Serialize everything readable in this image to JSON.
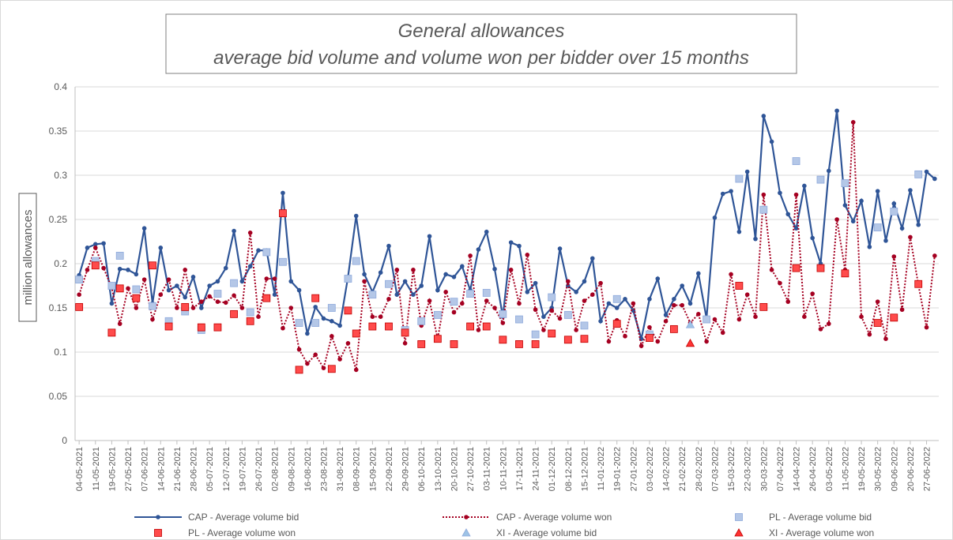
{
  "chart_data": {
    "type": "line",
    "title": "General allowances",
    "subtitle": "average bid volume and volume won per bidder over 15 months",
    "y_label": "million allowances",
    "categories": [
      "04-05-2021",
      null,
      "11-05-2021",
      null,
      "19-05-2021",
      null,
      "27-05-2021",
      null,
      "07-06-2021",
      null,
      "14-06-2021",
      null,
      "21-06-2021",
      null,
      "28-06-2021",
      null,
      "05-07-2021",
      null,
      "12-07-2021",
      null,
      "19-07-2021",
      null,
      "26-07-2021",
      null,
      "02-08-2021",
      null,
      "09-08-2021",
      null,
      "16-08-2021",
      null,
      "23-08-2021",
      null,
      "31-08-2021",
      null,
      "08-09-2021",
      null,
      "15-09-2021",
      null,
      "22-09-2021",
      null,
      "29-09-2021",
      null,
      "06-10-2021",
      null,
      "13-10-2021",
      null,
      "20-10-2021",
      null,
      "27-10-2021",
      null,
      "03-11-2021",
      null,
      "10-11-2021",
      null,
      "17-11-2021",
      null,
      "24-11-2021",
      null,
      "01-12-2021",
      null,
      "08-12-2021",
      null,
      "15-12-2021",
      null,
      "11-01-2022",
      null,
      "19-01-2022",
      null,
      "27-01-2022",
      null,
      "03-02-2022",
      null,
      "14-02-2022",
      null,
      "21-02-2022",
      null,
      "28-02-2022",
      null,
      "07-03-2022",
      null,
      "15-03-2022",
      null,
      "22-03-2022",
      null,
      "30-03-2022",
      null,
      "07-04-2022",
      null,
      "14-04-2022",
      null,
      "26-04-2022",
      null,
      "03-05-2022",
      null,
      "11-05-2022",
      null,
      "19-05-2022",
      null,
      "30-05-2022",
      null,
      "09-06-2022",
      null,
      "20-06-2022",
      null,
      "27-06-2022",
      null
    ],
    "series": [
      {
        "name": "CAP - Average volume bid",
        "color": "#2f5597",
        "line": "solid",
        "marker": "circle",
        "values": [
          0.187,
          0.218,
          0.222,
          0.223,
          0.155,
          0.194,
          0.193,
          0.188,
          0.24,
          0.155,
          0.218,
          0.17,
          0.175,
          0.162,
          0.185,
          0.15,
          0.175,
          0.18,
          0.195,
          0.237,
          0.18,
          0.197,
          0.215,
          0.215,
          0.165,
          0.28,
          0.18,
          0.17,
          0.121,
          0.151,
          0.138,
          0.135,
          0.13,
          0.185,
          0.254,
          0.188,
          0.168,
          0.19,
          0.22,
          0.165,
          0.18,
          0.165,
          0.175,
          0.231,
          0.17,
          0.188,
          0.185,
          0.197,
          0.17,
          0.216,
          0.236,
          0.194,
          0.14,
          0.224,
          0.22,
          0.168,
          0.178,
          0.14,
          0.15,
          0.217,
          0.175,
          0.168,
          0.18,
          0.206,
          0.135,
          0.155,
          0.15,
          0.16,
          0.147,
          0.115,
          0.16,
          0.183,
          0.142,
          0.16,
          0.175,
          0.155,
          0.189,
          0.138,
          0.252,
          0.279,
          0.282,
          0.236,
          0.304,
          0.228,
          0.367,
          0.338,
          0.28,
          0.256,
          0.24,
          0.288,
          0.229,
          0.2,
          0.305,
          0.373,
          0.266,
          0.248,
          0.271,
          0.219,
          0.282,
          0.226,
          0.268,
          0.24,
          0.283,
          0.244,
          0.304,
          0.296
        ]
      },
      {
        "name": "CAP - Average volume won",
        "color": "#a50021",
        "line": "dotted",
        "marker": "circle",
        "values": [
          0.165,
          0.193,
          0.218,
          0.195,
          0.173,
          0.132,
          0.172,
          0.15,
          0.182,
          0.137,
          0.165,
          0.182,
          0.15,
          0.193,
          0.15,
          0.157,
          0.163,
          0.157,
          0.156,
          0.164,
          0.15,
          0.235,
          0.14,
          0.183,
          0.183,
          0.127,
          0.15,
          0.103,
          0.087,
          0.097,
          0.082,
          0.118,
          0.092,
          0.11,
          0.08,
          0.18,
          0.14,
          0.14,
          0.16,
          0.193,
          0.11,
          0.193,
          0.13,
          0.158,
          0.115,
          0.168,
          0.145,
          0.155,
          0.209,
          0.125,
          0.158,
          0.15,
          0.133,
          0.193,
          0.155,
          0.21,
          0.148,
          0.125,
          0.147,
          0.138,
          0.18,
          0.125,
          0.158,
          0.165,
          0.178,
          0.112,
          0.136,
          0.118,
          0.155,
          0.107,
          0.128,
          0.112,
          0.135,
          0.153,
          0.153,
          0.133,
          0.143,
          0.112,
          0.137,
          0.122,
          0.188,
          0.137,
          0.165,
          0.14,
          0.278,
          0.193,
          0.178,
          0.157,
          0.278,
          0.14,
          0.166,
          0.126,
          0.132,
          0.25,
          0.193,
          0.36,
          0.14,
          0.12,
          0.157,
          0.115,
          0.208,
          0.148,
          0.23,
          0.176,
          0.128,
          0.209
        ]
      },
      {
        "name": "PL - Average volume bid",
        "color": "#b4c7e7",
        "line": "none",
        "marker": "square",
        "values": [
          0.182,
          null,
          0.203,
          null,
          0.175,
          0.209,
          null,
          0.171,
          null,
          0.152,
          null,
          0.135,
          null,
          0.146,
          null,
          0.125,
          null,
          0.166,
          null,
          0.178,
          null,
          0.145,
          null,
          0.213,
          null,
          0.202,
          null,
          0.133,
          null,
          0.133,
          null,
          0.15,
          null,
          0.183,
          0.203,
          null,
          0.165,
          null,
          0.177,
          null,
          0.125,
          null,
          0.135,
          null,
          0.142,
          null,
          0.157,
          null,
          0.166,
          null,
          0.167,
          null,
          0.143,
          null,
          0.137,
          null,
          0.12,
          null,
          0.162,
          null,
          0.142,
          null,
          0.13,
          null,
          null,
          null,
          0.16,
          null,
          null,
          null,
          0.12,
          null,
          null,
          null,
          null,
          null,
          null,
          0.137,
          null,
          null,
          null,
          0.296,
          null,
          null,
          0.261,
          null,
          null,
          null,
          0.316,
          null,
          null,
          0.295,
          null,
          null,
          0.291,
          null,
          null,
          null,
          0.241,
          null,
          0.259,
          null,
          null,
          0.301,
          null,
          null
        ]
      },
      {
        "name": "PL - Average volume won",
        "color": "#ff4b4b",
        "line": "none",
        "marker": "square",
        "values": [
          0.151,
          null,
          0.198,
          null,
          0.122,
          0.172,
          null,
          0.161,
          null,
          0.198,
          null,
          0.129,
          null,
          0.151,
          null,
          0.128,
          null,
          0.128,
          null,
          0.143,
          null,
          0.135,
          null,
          0.161,
          null,
          0.257,
          null,
          0.08,
          null,
          0.161,
          null,
          0.081,
          null,
          0.147,
          0.121,
          null,
          0.129,
          null,
          0.129,
          null,
          0.122,
          null,
          0.109,
          null,
          0.115,
          null,
          0.109,
          null,
          0.129,
          null,
          0.129,
          null,
          0.114,
          null,
          0.109,
          null,
          0.109,
          null,
          0.121,
          null,
          0.114,
          null,
          0.115,
          null,
          null,
          null,
          0.132,
          null,
          null,
          null,
          0.116,
          null,
          null,
          0.126,
          null,
          null,
          null,
          null,
          null,
          null,
          null,
          0.175,
          null,
          null,
          0.151,
          null,
          null,
          null,
          0.195,
          null,
          null,
          0.195,
          null,
          null,
          0.189,
          null,
          null,
          null,
          0.133,
          null,
          0.139,
          null,
          null,
          0.177,
          null,
          null
        ]
      },
      {
        "name": "XI - Average volume bid",
        "color": "#9dc3e6",
        "line": "none",
        "marker": "triangle",
        "values": [
          null,
          null,
          null,
          null,
          null,
          null,
          null,
          null,
          null,
          null,
          null,
          null,
          null,
          null,
          null,
          null,
          null,
          null,
          null,
          null,
          null,
          null,
          null,
          null,
          null,
          null,
          null,
          null,
          null,
          null,
          null,
          null,
          null,
          null,
          null,
          null,
          null,
          null,
          null,
          null,
          null,
          null,
          null,
          null,
          null,
          null,
          null,
          null,
          null,
          null,
          null,
          null,
          null,
          null,
          null,
          null,
          null,
          null,
          null,
          null,
          null,
          null,
          null,
          null,
          null,
          null,
          null,
          null,
          null,
          null,
          null,
          null,
          null,
          null,
          null,
          0.131,
          null,
          null,
          null,
          null,
          null,
          null,
          null,
          null,
          null,
          null,
          null,
          null,
          null,
          null,
          null,
          null,
          null,
          null,
          null,
          null,
          null,
          null,
          null,
          null,
          null,
          null,
          null,
          null,
          null,
          null
        ]
      },
      {
        "name": "XI - Average volume won",
        "color": "#ff3333",
        "line": "none",
        "marker": "triangle",
        "values": [
          null,
          null,
          null,
          null,
          null,
          null,
          null,
          null,
          null,
          null,
          null,
          null,
          null,
          null,
          null,
          null,
          null,
          null,
          null,
          null,
          null,
          null,
          null,
          null,
          null,
          null,
          null,
          null,
          null,
          null,
          null,
          null,
          null,
          null,
          null,
          null,
          null,
          null,
          null,
          null,
          null,
          null,
          null,
          null,
          null,
          null,
          null,
          null,
          null,
          null,
          null,
          null,
          null,
          null,
          null,
          null,
          null,
          null,
          null,
          null,
          null,
          null,
          null,
          null,
          null,
          null,
          null,
          null,
          null,
          null,
          null,
          null,
          null,
          null,
          null,
          0.11,
          null,
          null,
          null,
          null,
          null,
          null,
          null,
          null,
          null,
          null,
          null,
          null,
          null,
          null,
          null,
          null,
          null,
          null,
          null,
          null,
          null,
          null,
          null,
          null,
          null,
          null,
          null,
          null,
          null,
          null
        ]
      }
    ],
    "ylim": [
      0,
      0.4
    ],
    "yticks": [
      0,
      0.05,
      0.1,
      0.15,
      0.2,
      0.25,
      0.3,
      0.35,
      0.4
    ],
    "grid": true
  }
}
